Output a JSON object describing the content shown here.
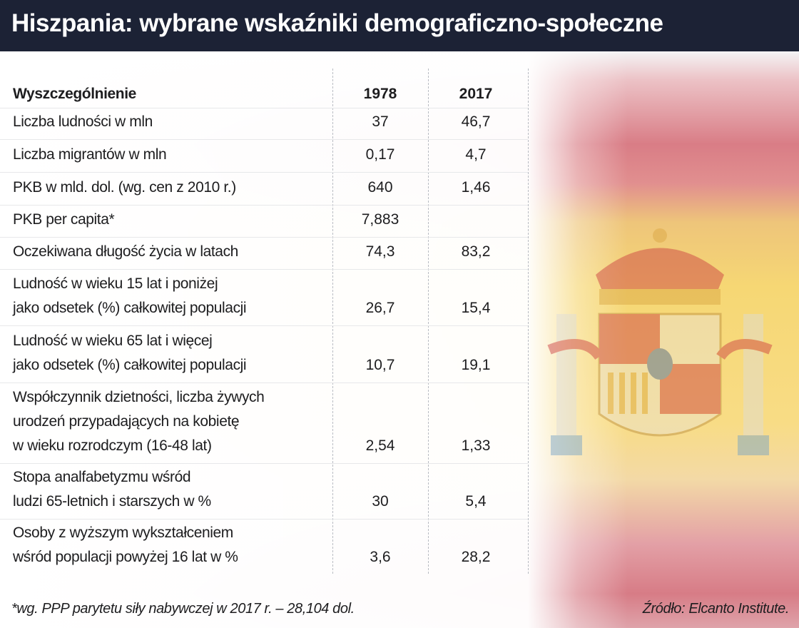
{
  "header": {
    "title": "Hiszpania: wybrane wskaźniki demograficzno-społeczne"
  },
  "table": {
    "columns": [
      "Wyszczególnienie",
      "1978",
      "2017"
    ],
    "rows": [
      {
        "label": [
          "Liczba ludności w mln"
        ],
        "v1978": "37",
        "v2017": "46,7"
      },
      {
        "label": [
          "Liczba migrantów w mln"
        ],
        "v1978": "0,17",
        "v2017": "4,7"
      },
      {
        "label": [
          "PKB w mld. dol. (wg. cen z 2010 r.)"
        ],
        "v1978": "640",
        "v2017": "1,46"
      },
      {
        "label": [
          "PKB per capita*"
        ],
        "v1978": "7,883",
        "v2017": ""
      },
      {
        "label": [
          "Oczekiwana długość życia w latach"
        ],
        "v1978": "74,3",
        "v2017": "83,2"
      },
      {
        "label": [
          "Ludność w wieku 15 lat i poniżej",
          "jako odsetek (%) całkowitej populacji"
        ],
        "v1978": "26,7",
        "v2017": "15,4"
      },
      {
        "label": [
          "Ludność w wieku 65 lat i więcej",
          "jako odsetek (%) całkowitej populacji"
        ],
        "v1978": "10,7",
        "v2017": "19,1"
      },
      {
        "label": [
          "Współczynnik dzietności, liczba żywych",
          "urodzeń przypadających na kobietę",
          "w wieku rozrodczym (16-48 lat)"
        ],
        "v1978": "2,54",
        "v2017": "1,33"
      },
      {
        "label": [
          "Stopa analfabetyzmu wśród",
          "ludzi 65-letnich i starszych w %"
        ],
        "v1978": "30",
        "v2017": "5,4"
      },
      {
        "label": [
          "Osoby z wyższym wykształceniem",
          "wśród populacji powyżej 16 lat w %"
        ],
        "v1978": "3,6",
        "v2017": "28,2"
      }
    ]
  },
  "footnote": "*wg. PPP parytetu siły nabywczej w 2017 r. – 28,104 dol.",
  "source": "Źródło: Elcanto Institute.",
  "colors": {
    "header_bg": "#1c2235",
    "flag_red": "#d97d86",
    "flag_yellow": "#f6d774"
  },
  "icons": {
    "background": "spanish-flag-coat-of-arms"
  }
}
